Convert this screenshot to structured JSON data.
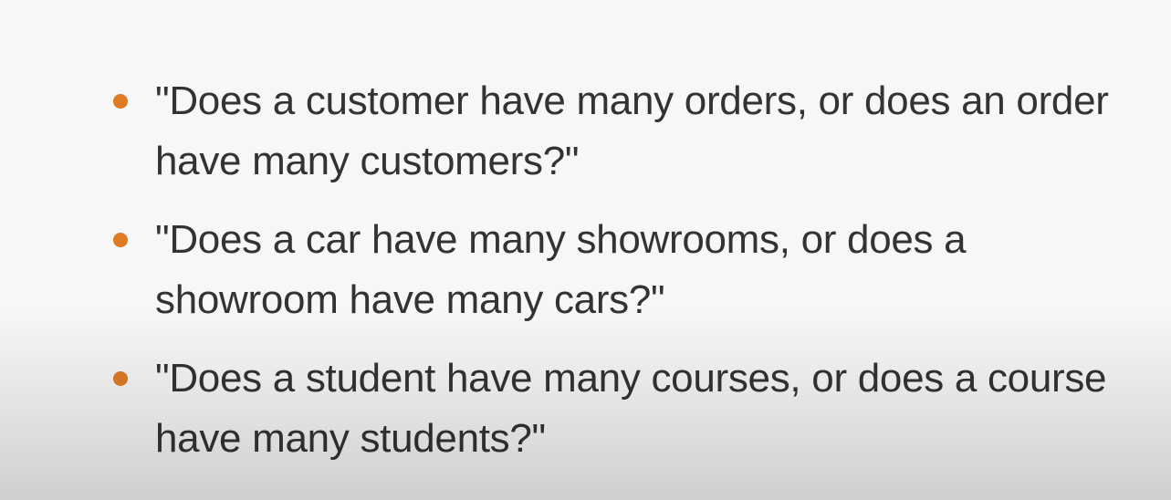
{
  "theme": {
    "bullet_color": "#e07b24",
    "text_color": "#333333"
  },
  "bullets": [
    {
      "text": "\"Does a customer have many orders, or does an order have many customers?\""
    },
    {
      "text": "\"Does a car have many showrooms, or does a showroom have many cars?\""
    },
    {
      "text": "\"Does a student have many courses, or does a course have many students?\""
    }
  ]
}
